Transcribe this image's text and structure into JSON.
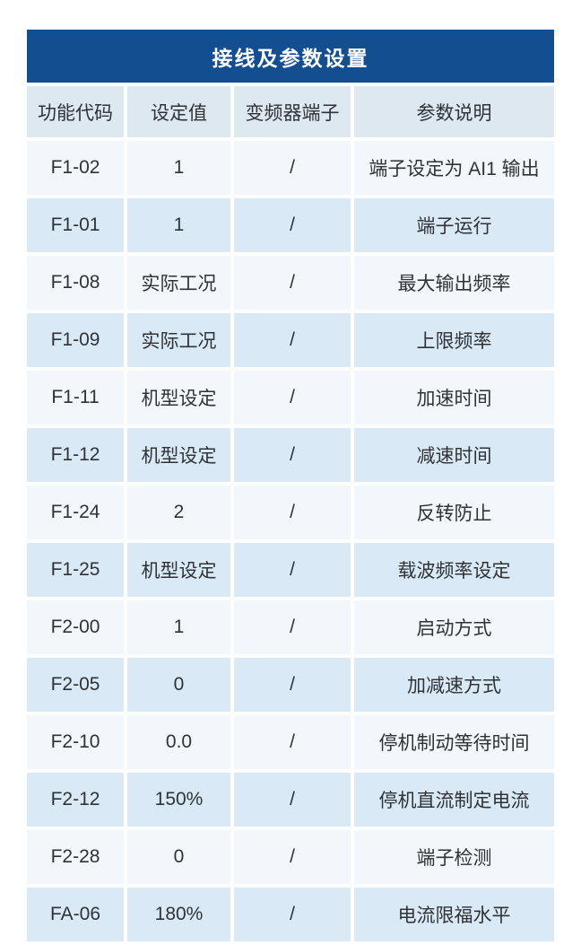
{
  "colors": {
    "title_bg": "#134f90",
    "title_text": "#ffffff",
    "header_bg": "#dde8f0",
    "row_light": "#f1f7fb",
    "row_blue": "#d9eaf6",
    "text": "#2f3237",
    "page_bg": "#ffffff"
  },
  "table": {
    "title": "接线及参数设置",
    "columns": {
      "code": "功能代码",
      "value": "设定值",
      "terminal": "变频器端子",
      "description": "参数说明"
    },
    "rows": [
      {
        "code": "F1-02",
        "value": "1",
        "terminal": "/",
        "description": "端子设定为 AI1 输出"
      },
      {
        "code": "F1-01",
        "value": "1",
        "terminal": "/",
        "description": "端子运行"
      },
      {
        "code": "F1-08",
        "value": "实际工况",
        "terminal": "/",
        "description": "最大输出频率"
      },
      {
        "code": "F1-09",
        "value": "实际工况",
        "terminal": "/",
        "description": "上限频率"
      },
      {
        "code": "F1-11",
        "value": "机型设定",
        "terminal": "/",
        "description": "加速时间"
      },
      {
        "code": "F1-12",
        "value": "机型设定",
        "terminal": "/",
        "description": "减速时间"
      },
      {
        "code": "F1-24",
        "value": "2",
        "terminal": "/",
        "description": "反转防止"
      },
      {
        "code": "F1-25",
        "value": "机型设定",
        "terminal": "/",
        "description": "载波频率设定"
      },
      {
        "code": "F2-00",
        "value": "1",
        "terminal": "/",
        "description": "启动方式"
      },
      {
        "code": "F2-05",
        "value": "0",
        "terminal": "/",
        "description": "加减速方式"
      },
      {
        "code": "F2-10",
        "value": "0.0",
        "terminal": "/",
        "description": "停机制动等待时间"
      },
      {
        "code": "F2-12",
        "value": "150%",
        "terminal": "/",
        "description": "停机直流制定电流"
      },
      {
        "code": "F2-28",
        "value": "0",
        "terminal": "/",
        "description": "端子检测"
      },
      {
        "code": "FA-06",
        "value": "180%",
        "terminal": "/",
        "description": "电流限福水平"
      }
    ]
  },
  "chart_data": {
    "type": "table",
    "title": "接线及参数设置",
    "columns": [
      "功能代码",
      "设定值",
      "变频器端子",
      "参数说明"
    ],
    "rows": [
      [
        "F1-02",
        "1",
        "/",
        "端子设定为 AI1 输出"
      ],
      [
        "F1-01",
        "1",
        "/",
        "端子运行"
      ],
      [
        "F1-08",
        "实际工况",
        "/",
        "最大输出频率"
      ],
      [
        "F1-09",
        "实际工况",
        "/",
        "上限频率"
      ],
      [
        "F1-11",
        "机型设定",
        "/",
        "加速时间"
      ],
      [
        "F1-12",
        "机型设定",
        "/",
        "减速时间"
      ],
      [
        "F1-24",
        "2",
        "/",
        "反转防止"
      ],
      [
        "F1-25",
        "机型设定",
        "/",
        "载波频率设定"
      ],
      [
        "F2-00",
        "1",
        "/",
        "启动方式"
      ],
      [
        "F2-05",
        "0",
        "/",
        "加减速方式"
      ],
      [
        "F2-10",
        "0.0",
        "/",
        "停机制动等待时间"
      ],
      [
        "F2-12",
        "150%",
        "/",
        "停机直流制定电流"
      ],
      [
        "F2-28",
        "0",
        "/",
        "端子检测"
      ],
      [
        "FA-06",
        "180%",
        "/",
        "电流限福水平"
      ]
    ]
  }
}
